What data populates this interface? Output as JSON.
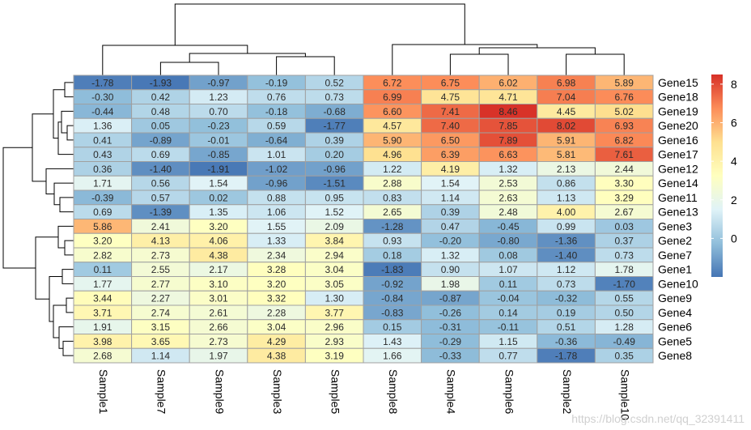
{
  "chart_data": {
    "type": "heatmap",
    "title": "",
    "columns": [
      "Sample1",
      "Sample7",
      "Sample9",
      "Sample3",
      "Sample5",
      "Sample8",
      "Sample4",
      "Sample6",
      "Sample2",
      "Sample10"
    ],
    "rows": [
      "Gene15",
      "Gene18",
      "Gene19",
      "Gene20",
      "Gene16",
      "Gene17",
      "Gene12",
      "Gene14",
      "Gene11",
      "Gene13",
      "Gene3",
      "Gene2",
      "Gene7",
      "Gene1",
      "Gene10",
      "Gene9",
      "Gene4",
      "Gene6",
      "Gene5",
      "Gene8"
    ],
    "values": [
      [
        "-1.78",
        "-1.93",
        "-0.97",
        "-0.19",
        "0.52",
        "6.72",
        "6.75",
        "6.02",
        "6.98",
        "5.89"
      ],
      [
        "-0.30",
        "0.42",
        "1.23",
        "0.76",
        "0.73",
        "6.99",
        "4.75",
        "4.71",
        "7.04",
        "6.76"
      ],
      [
        "-0.44",
        "0.48",
        "0.70",
        "-0.18",
        "-0.68",
        "6.60",
        "7.41",
        "8.46",
        "4.45",
        "5.02"
      ],
      [
        "1.36",
        "0.05",
        "-0.23",
        "0.59",
        "-1.77",
        "4.57",
        "7.40",
        "7.85",
        "8.02",
        "6.93"
      ],
      [
        "0.41",
        "-0.89",
        "-0.01",
        "-0.64",
        "0.39",
        "5.90",
        "6.50",
        "7.89",
        "5.91",
        "6.82"
      ],
      [
        "0.43",
        "0.69",
        "-0.85",
        "1.01",
        "0.20",
        "4.96",
        "6.39",
        "6.63",
        "5.81",
        "7.61"
      ],
      [
        "0.36",
        "-1.40",
        "-1.91",
        "-1.02",
        "-0.96",
        "1.22",
        "4.19",
        "1.32",
        "2.13",
        "2.44"
      ],
      [
        "1.71",
        "0.56",
        "1.54",
        "-0.96",
        "-1.51",
        "2.88",
        "1.54",
        "2.53",
        "0.86",
        "3.30"
      ],
      [
        "-0.39",
        "0.57",
        "0.02",
        "0.88",
        "0.95",
        "0.83",
        "1.14",
        "2.63",
        "1.13",
        "3.29"
      ],
      [
        "0.69",
        "-1.39",
        "1.35",
        "1.06",
        "1.52",
        "2.65",
        "0.39",
        "2.48",
        "4.00",
        "2.67"
      ],
      [
        "5.86",
        "2.41",
        "3.20",
        "1.55",
        "2.09",
        "-1.28",
        "0.47",
        "-0.45",
        "0.99",
        "0.03"
      ],
      [
        "3.20",
        "4.13",
        "4.06",
        "1.33",
        "3.84",
        "0.93",
        "-0.20",
        "-0.80",
        "-1.36",
        "0.37"
      ],
      [
        "2.82",
        "2.73",
        "4.38",
        "2.34",
        "2.94",
        "0.18",
        "1.32",
        "0.08",
        "-1.40",
        "0.73"
      ],
      [
        "0.11",
        "2.55",
        "2.17",
        "3.28",
        "3.04",
        "-1.83",
        "0.90",
        "1.07",
        "1.12",
        "1.78"
      ],
      [
        "1.77",
        "2.77",
        "3.10",
        "3.20",
        "3.05",
        "-0.92",
        "1.98",
        "0.11",
        "0.73",
        "-1.70"
      ],
      [
        "3.44",
        "2.27",
        "3.01",
        "3.32",
        "1.30",
        "-0.84",
        "-0.87",
        "-0.04",
        "-0.32",
        "0.55"
      ],
      [
        "3.71",
        "2.74",
        "2.61",
        "2.28",
        "3.77",
        "-0.83",
        "-0.26",
        "0.14",
        "0.19",
        "0.50"
      ],
      [
        "1.91",
        "3.15",
        "2.66",
        "3.04",
        "2.96",
        "0.15",
        "-0.31",
        "-0.11",
        "0.51",
        "1.28"
      ],
      [
        "3.98",
        "3.65",
        "2.73",
        "4.29",
        "2.93",
        "1.43",
        "-0.29",
        "1.15",
        "-0.36",
        "-0.49"
      ],
      [
        "2.68",
        "1.14",
        "1.97",
        "4.38",
        "3.19",
        "1.66",
        "-0.33",
        "0.77",
        "-1.78",
        "0.35"
      ]
    ],
    "color_scale": {
      "min": -2.0,
      "max": 8.5,
      "colors": [
        "#4575b4",
        "#91bfdb",
        "#e0f3f8",
        "#ffffbf",
        "#fee090",
        "#fc8d59",
        "#d73027"
      ]
    },
    "legend": {
      "ticks": [
        "0",
        "2",
        "4",
        "6",
        "8"
      ],
      "placement": "right"
    },
    "row_dendrogram": "left",
    "column_dendrogram": "top",
    "cell_border_color": "#a0a0a0"
  },
  "watermark": "https://blog.csdn.net/qq_32391411"
}
